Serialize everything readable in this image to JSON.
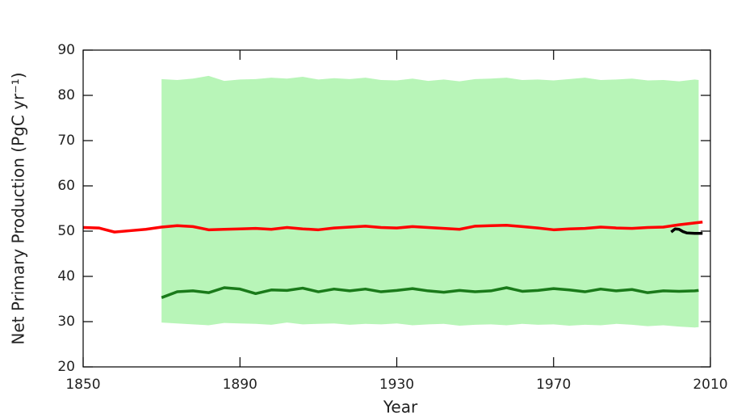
{
  "chart_data": {
    "type": "line",
    "xlabel": "Year",
    "ylabel": "Net Primary Production (PgC yr⁻¹)",
    "xlim": [
      1850,
      2010
    ],
    "xticks": [
      1850,
      1890,
      1930,
      1970,
      2010
    ],
    "ylim": [
      20,
      90
    ],
    "yticks": [
      20,
      30,
      40,
      50,
      60,
      70,
      80,
      90
    ],
    "band": {
      "color": "#b8f5b8",
      "x": [
        1870,
        1874,
        1878,
        1882,
        1886,
        1890,
        1894,
        1898,
        1902,
        1906,
        1910,
        1914,
        1918,
        1922,
        1926,
        1930,
        1934,
        1938,
        1942,
        1946,
        1950,
        1954,
        1958,
        1962,
        1966,
        1970,
        1974,
        1978,
        1982,
        1986,
        1990,
        1994,
        1998,
        2002,
        2006,
        2007
      ],
      "upper": [
        83.6,
        83.4,
        83.7,
        84.3,
        83.2,
        83.5,
        83.6,
        83.9,
        83.7,
        84.1,
        83.5,
        83.8,
        83.6,
        83.9,
        83.4,
        83.3,
        83.7,
        83.2,
        83.5,
        83.1,
        83.6,
        83.7,
        83.9,
        83.4,
        83.5,
        83.3,
        83.6,
        83.9,
        83.4,
        83.5,
        83.7,
        83.3,
        83.4,
        83.1,
        83.5,
        83.4
      ],
      "lower": [
        29.8,
        29.6,
        29.4,
        29.2,
        29.7,
        29.6,
        29.5,
        29.3,
        29.8,
        29.4,
        29.5,
        29.6,
        29.3,
        29.5,
        29.4,
        29.6,
        29.2,
        29.4,
        29.5,
        29.1,
        29.3,
        29.4,
        29.2,
        29.5,
        29.3,
        29.4,
        29.1,
        29.3,
        29.2,
        29.5,
        29.3,
        29.0,
        29.2,
        28.9,
        28.7,
        28.8
      ]
    },
    "series": [
      {
        "color": "#ff0000",
        "x": [
          1850,
          1854,
          1858,
          1862,
          1866,
          1870,
          1874,
          1878,
          1882,
          1886,
          1890,
          1894,
          1898,
          1902,
          1906,
          1910,
          1914,
          1918,
          1922,
          1926,
          1930,
          1934,
          1938,
          1942,
          1946,
          1950,
          1954,
          1958,
          1962,
          1966,
          1970,
          1974,
          1978,
          1982,
          1986,
          1990,
          1994,
          1998,
          2002,
          2006,
          2008
        ],
        "values": [
          50.8,
          50.7,
          49.8,
          50.1,
          50.4,
          50.9,
          51.2,
          51.0,
          50.3,
          50.4,
          50.5,
          50.6,
          50.4,
          50.8,
          50.5,
          50.3,
          50.7,
          50.9,
          51.1,
          50.8,
          50.7,
          51.0,
          50.8,
          50.6,
          50.4,
          51.1,
          51.2,
          51.3,
          51.0,
          50.7,
          50.3,
          50.5,
          50.6,
          50.9,
          50.7,
          50.6,
          50.8,
          50.9,
          51.4,
          51.8,
          52.0
        ]
      },
      {
        "color": "#1a7a1a",
        "x": [
          1870,
          1874,
          1878,
          1882,
          1886,
          1890,
          1894,
          1898,
          1902,
          1906,
          1910,
          1914,
          1918,
          1922,
          1926,
          1930,
          1934,
          1938,
          1942,
          1946,
          1950,
          1954,
          1958,
          1962,
          1966,
          1970,
          1974,
          1978,
          1982,
          1986,
          1990,
          1994,
          1998,
          2002,
          2006,
          2007
        ],
        "values": [
          35.3,
          36.6,
          36.8,
          36.4,
          37.5,
          37.2,
          36.2,
          37.0,
          36.9,
          37.4,
          36.6,
          37.2,
          36.8,
          37.2,
          36.6,
          36.9,
          37.3,
          36.8,
          36.5,
          36.9,
          36.6,
          36.8,
          37.5,
          36.7,
          36.9,
          37.3,
          37.0,
          36.6,
          37.2,
          36.8,
          37.1,
          36.4,
          36.8,
          36.7,
          36.8,
          36.9
        ]
      },
      {
        "color": "#000000",
        "x": [
          2000,
          2001,
          2002,
          2003,
          2004,
          2006,
          2008
        ],
        "values": [
          49.8,
          50.5,
          50.4,
          49.9,
          49.6,
          49.5,
          49.5
        ]
      }
    ]
  }
}
